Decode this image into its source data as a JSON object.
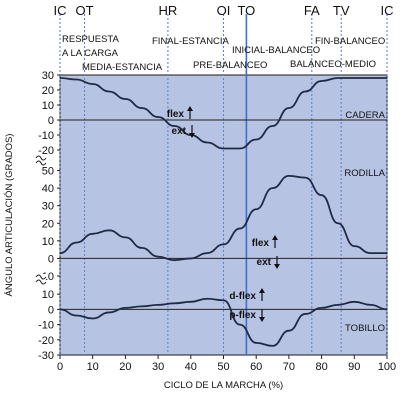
{
  "chart_data": {
    "type": "line",
    "xlabel": "CICLO DE LA MARCHA (%)",
    "ylabel": "ÁNGULO ARTICULACIÓN (GRADOS)",
    "xlim": [
      0,
      100
    ],
    "x_ticks": [
      0,
      10,
      20,
      30,
      40,
      50,
      60,
      70,
      80,
      90,
      100
    ],
    "events": [
      {
        "label": "IC",
        "x": 0
      },
      {
        "label": "OT",
        "x": 7.5
      },
      {
        "label": "HR",
        "x": 33
      },
      {
        "label": "OI",
        "x": 50
      },
      {
        "label": "TO",
        "x": 57
      },
      {
        "label": "FA",
        "x": 77
      },
      {
        "label": "TV",
        "x": 86
      },
      {
        "label": "IC",
        "x": 100
      }
    ],
    "phases": [
      "RESPUESTA",
      "A LA CARGA",
      "MEDIA-ESTANCIA",
      "FINAL-ESTANCIA",
      "PRE-BALANCEO",
      "INICIAL-BALANCEO",
      "BALANCEO-MEDIO",
      "FIN-BALANCEO"
    ],
    "panels": [
      {
        "name": "CADERA",
        "ylim": [
          -30,
          30
        ],
        "yticks": [
          30,
          20,
          10,
          0,
          -10,
          -20
        ],
        "flex_label": "flex",
        "ext_label": "ext",
        "x": [
          0,
          5,
          10,
          15,
          20,
          25,
          30,
          35,
          40,
          45,
          50,
          55,
          60,
          65,
          70,
          75,
          80,
          85,
          90,
          95,
          100
        ],
        "y": [
          28,
          27,
          24,
          19,
          14,
          8,
          2,
          -4,
          -10,
          -15,
          -19,
          -19,
          -13,
          -4,
          8,
          19,
          26,
          28,
          28,
          28,
          28
        ]
      },
      {
        "name": "RODILLA",
        "ylim": [
          -10,
          60
        ],
        "yticks": [
          50,
          40,
          30,
          20,
          10,
          0,
          -10
        ],
        "flex_label": "flex",
        "ext_label": "ext",
        "x": [
          0,
          5,
          10,
          15,
          20,
          25,
          30,
          35,
          40,
          45,
          50,
          55,
          60,
          65,
          70,
          75,
          80,
          85,
          90,
          95,
          100
        ],
        "y": [
          3,
          9,
          14,
          16,
          12,
          6,
          1,
          -1,
          0,
          3,
          8,
          17,
          28,
          40,
          47,
          46,
          36,
          20,
          7,
          3,
          3
        ]
      },
      {
        "name": "TOBILLO",
        "ylim": [
          -30,
          20
        ],
        "yticks": [
          10,
          0,
          -10,
          -20,
          -30
        ],
        "flex_label": "d-flex",
        "ext_label": "p-flex",
        "x": [
          0,
          5,
          10,
          15,
          20,
          25,
          30,
          35,
          40,
          45,
          50,
          55,
          60,
          65,
          70,
          75,
          80,
          85,
          90,
          95,
          100
        ],
        "y": [
          0,
          -4,
          -6,
          -2,
          1,
          2,
          3,
          4,
          5,
          7,
          6,
          -10,
          -22,
          -24,
          -14,
          -3,
          1,
          3,
          5,
          3,
          0
        ]
      }
    ]
  }
}
